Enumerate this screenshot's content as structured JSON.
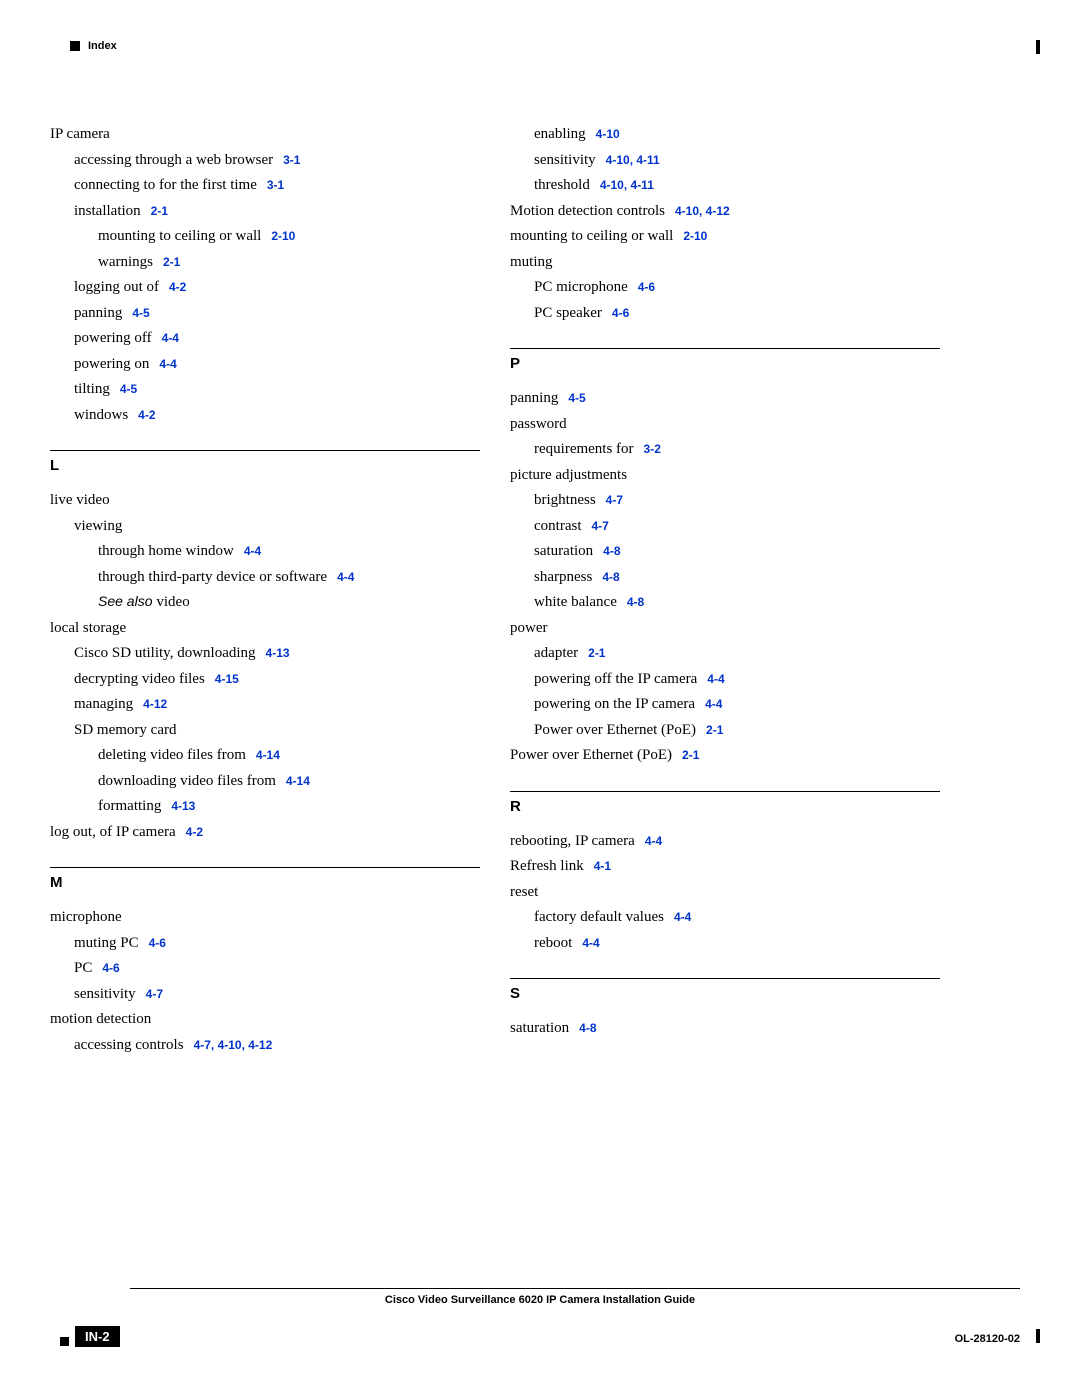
{
  "header": {
    "label": "Index"
  },
  "colors": {
    "link": "#0033cc",
    "text": "#000000"
  },
  "left_col": {
    "initial": [
      {
        "lvl": 0,
        "text": "IP camera"
      },
      {
        "lvl": 1,
        "text": "accessing through a web browser",
        "refs": [
          "3-1"
        ]
      },
      {
        "lvl": 1,
        "text": "connecting to for the first time",
        "refs": [
          "3-1"
        ]
      },
      {
        "lvl": 1,
        "text": "installation",
        "refs": [
          "2-1"
        ]
      },
      {
        "lvl": 2,
        "text": "mounting to ceiling or wall",
        "refs": [
          "2-10"
        ]
      },
      {
        "lvl": 2,
        "text": "warnings",
        "refs": [
          "2-1"
        ]
      },
      {
        "lvl": 1,
        "text": "logging out of",
        "refs": [
          "4-2"
        ]
      },
      {
        "lvl": 1,
        "text": "panning",
        "refs": [
          "4-5"
        ]
      },
      {
        "lvl": 1,
        "text": "powering off",
        "refs": [
          "4-4"
        ]
      },
      {
        "lvl": 1,
        "text": "powering on",
        "refs": [
          "4-4"
        ]
      },
      {
        "lvl": 1,
        "text": "tilting",
        "refs": [
          "4-5"
        ]
      },
      {
        "lvl": 1,
        "text": "windows",
        "refs": [
          "4-2"
        ]
      }
    ],
    "sections": [
      {
        "letter": "L",
        "entries": [
          {
            "lvl": 0,
            "text": "live video"
          },
          {
            "lvl": 1,
            "text": "viewing"
          },
          {
            "lvl": 2,
            "text": "through home window",
            "refs": [
              "4-4"
            ]
          },
          {
            "lvl": 2,
            "text": "through third-party device or software",
            "refs": [
              "4-4"
            ]
          },
          {
            "lvl": 2,
            "see_also": "video"
          },
          {
            "lvl": 0,
            "text": "local storage"
          },
          {
            "lvl": 1,
            "text": "Cisco SD utility, downloading",
            "refs": [
              "4-13"
            ]
          },
          {
            "lvl": 1,
            "text": "decrypting video files",
            "refs": [
              "4-15"
            ]
          },
          {
            "lvl": 1,
            "text": "managing",
            "refs": [
              "4-12"
            ]
          },
          {
            "lvl": 1,
            "text": "SD memory card"
          },
          {
            "lvl": 2,
            "text": "deleting video files from",
            "refs": [
              "4-14"
            ]
          },
          {
            "lvl": 2,
            "text": "downloading video files from",
            "refs": [
              "4-14"
            ]
          },
          {
            "lvl": 2,
            "text": "formatting",
            "refs": [
              "4-13"
            ]
          },
          {
            "lvl": 0,
            "text": "log out, of IP camera",
            "refs": [
              "4-2"
            ]
          }
        ]
      },
      {
        "letter": "M",
        "entries": [
          {
            "lvl": 0,
            "text": "microphone"
          },
          {
            "lvl": 1,
            "text": "muting PC",
            "refs": [
              "4-6"
            ]
          },
          {
            "lvl": 1,
            "text": "PC",
            "refs": [
              "4-6"
            ]
          },
          {
            "lvl": 1,
            "text": "sensitivity",
            "refs": [
              "4-7"
            ]
          },
          {
            "lvl": 0,
            "text": "motion detection"
          },
          {
            "lvl": 1,
            "text": "accessing controls",
            "refs": [
              "4-7, 4-10, 4-12"
            ]
          }
        ]
      }
    ]
  },
  "right_col": {
    "initial": [
      {
        "lvl": 1,
        "text": "enabling",
        "refs": [
          "4-10"
        ]
      },
      {
        "lvl": 1,
        "text": "sensitivity",
        "refs": [
          "4-10, 4-11"
        ]
      },
      {
        "lvl": 1,
        "text": "threshold",
        "refs": [
          "4-10, 4-11"
        ]
      },
      {
        "lvl": 0,
        "text": "Motion detection controls",
        "refs": [
          "4-10, 4-12"
        ]
      },
      {
        "lvl": 0,
        "text": "mounting to ceiling or wall",
        "refs": [
          "2-10"
        ]
      },
      {
        "lvl": 0,
        "text": "muting"
      },
      {
        "lvl": 1,
        "text": "PC microphone",
        "refs": [
          "4-6"
        ]
      },
      {
        "lvl": 1,
        "text": "PC speaker",
        "refs": [
          "4-6"
        ]
      }
    ],
    "sections": [
      {
        "letter": "P",
        "entries": [
          {
            "lvl": 0,
            "text": "panning",
            "refs": [
              "4-5"
            ]
          },
          {
            "lvl": 0,
            "text": "password"
          },
          {
            "lvl": 1,
            "text": "requirements for",
            "refs": [
              "3-2"
            ]
          },
          {
            "lvl": 0,
            "text": "picture adjustments"
          },
          {
            "lvl": 1,
            "text": "brightness",
            "refs": [
              "4-7"
            ]
          },
          {
            "lvl": 1,
            "text": "contrast",
            "refs": [
              "4-7"
            ]
          },
          {
            "lvl": 1,
            "text": "saturation",
            "refs": [
              "4-8"
            ]
          },
          {
            "lvl": 1,
            "text": "sharpness",
            "refs": [
              "4-8"
            ]
          },
          {
            "lvl": 1,
            "text": "white balance",
            "refs": [
              "4-8"
            ]
          },
          {
            "lvl": 0,
            "text": "power"
          },
          {
            "lvl": 1,
            "text": "adapter",
            "refs": [
              "2-1"
            ]
          },
          {
            "lvl": 1,
            "text": "powering off the IP camera",
            "refs": [
              "4-4"
            ]
          },
          {
            "lvl": 1,
            "text": "powering on the IP camera",
            "refs": [
              "4-4"
            ]
          },
          {
            "lvl": 1,
            "text": "Power over Ethernet (PoE)",
            "refs": [
              "2-1"
            ]
          },
          {
            "lvl": 0,
            "text": "Power over Ethernet (PoE)",
            "refs": [
              "2-1"
            ]
          }
        ]
      },
      {
        "letter": "R",
        "entries": [
          {
            "lvl": 0,
            "text": "rebooting, IP camera",
            "refs": [
              "4-4"
            ]
          },
          {
            "lvl": 0,
            "text": "Refresh link",
            "refs": [
              "4-1"
            ]
          },
          {
            "lvl": 0,
            "text": "reset"
          },
          {
            "lvl": 1,
            "text": "factory default values",
            "refs": [
              "4-4"
            ]
          },
          {
            "lvl": 1,
            "text": "reboot",
            "refs": [
              "4-4"
            ]
          }
        ]
      },
      {
        "letter": "S",
        "entries": [
          {
            "lvl": 0,
            "text": "saturation",
            "refs": [
              "4-8"
            ]
          }
        ]
      }
    ]
  },
  "footer": {
    "title": "Cisco Video Surveillance 6020 IP Camera Installation Guide",
    "page": "IN-2",
    "doc_id": "OL-28120-02"
  }
}
